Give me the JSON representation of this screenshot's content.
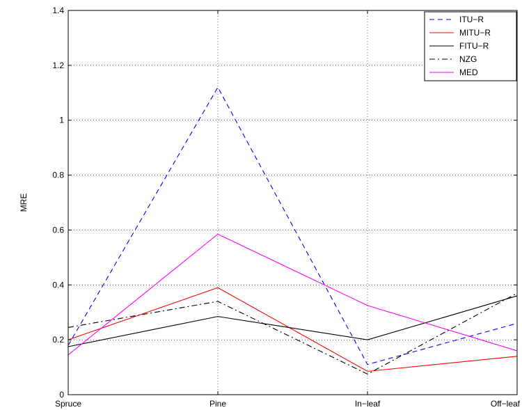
{
  "chart_data": {
    "type": "line",
    "categories": [
      "Spruce",
      "Pine",
      "In−leaf",
      "Off−leaf"
    ],
    "ylabel": "MRE",
    "xlabel": "",
    "ylim": [
      0,
      1.4
    ],
    "yticks": [
      "0",
      "0.2",
      "0.4",
      "0.6",
      "0.8",
      "1",
      "1.2",
      "1.4"
    ],
    "grid": true,
    "legend_position": "top-right",
    "series": [
      {
        "name": "ITU−R",
        "values": [
          0.18,
          1.12,
          0.11,
          0.26
        ],
        "color": "#0000ff",
        "style": "dashed"
      },
      {
        "name": "MITU−R",
        "values": [
          0.2,
          0.39,
          0.085,
          0.14
        ],
        "color": "#ff0000",
        "style": "solid"
      },
      {
        "name": "FITU−R",
        "values": [
          0.175,
          0.285,
          0.2,
          0.36
        ],
        "color": "#000000",
        "style": "solid"
      },
      {
        "name": "NZG",
        "values": [
          0.245,
          0.34,
          0.075,
          0.37
        ],
        "color": "#000000",
        "style": "dashdot"
      },
      {
        "name": "MED",
        "values": [
          0.145,
          0.585,
          0.325,
          0.16
        ],
        "color": "#ff00ff",
        "style": "solid"
      }
    ]
  }
}
